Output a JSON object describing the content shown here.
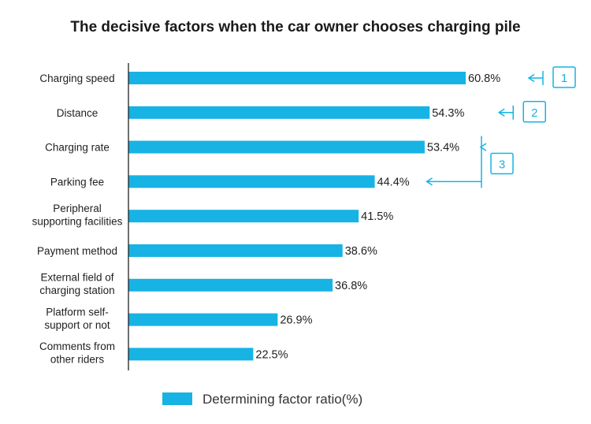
{
  "chart_data": {
    "type": "bar",
    "orientation": "horizontal",
    "title": "The decisive factors when the car owner chooses charging pile",
    "categories": [
      [
        "Charging speed"
      ],
      [
        "Distance"
      ],
      [
        "Charging rate"
      ],
      [
        "Parking fee"
      ],
      [
        "Peripheral",
        "supporting facilities"
      ],
      [
        "Payment method"
      ],
      [
        "External field of",
        "charging station"
      ],
      [
        "Platform self-",
        "support or not"
      ],
      [
        "Comments from",
        "other riders"
      ]
    ],
    "values": [
      60.8,
      54.3,
      53.4,
      44.4,
      41.5,
      38.6,
      36.8,
      26.9,
      22.5
    ],
    "value_labels": [
      "60.8%",
      "54.3%",
      "53.4%",
      "44.4%",
      "41.5%",
      "38.6%",
      "36.8%",
      "26.9%",
      "22.5%"
    ],
    "series": [
      {
        "name": "Determining factor ratio(%)",
        "values": [
          60.8,
          54.3,
          53.4,
          44.4,
          41.5,
          38.6,
          36.8,
          26.9,
          22.5
        ]
      }
    ],
    "xlim": [
      0,
      70
    ],
    "grid": false,
    "legend_position": "bottom",
    "bar_color": "#16b3e4",
    "annotation_color": "#16b3e4",
    "annotations": [
      {
        "label": "1",
        "points_to": [
          0
        ]
      },
      {
        "label": "2",
        "points_to": [
          1
        ]
      },
      {
        "label": "3",
        "points_to": [
          2,
          3
        ]
      }
    ]
  }
}
